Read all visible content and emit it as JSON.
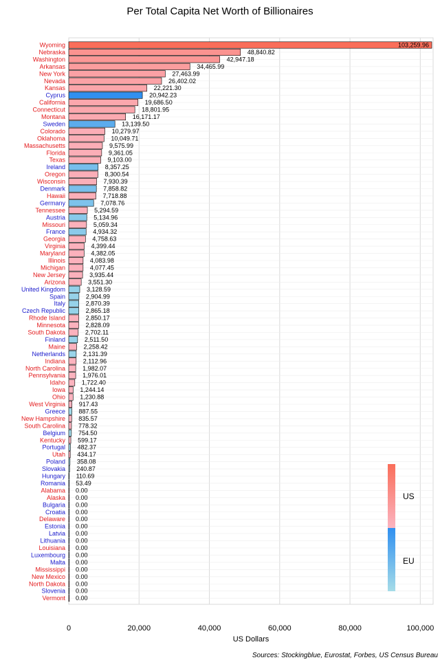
{
  "chart_data": {
    "type": "bar",
    "orientation": "horizontal",
    "title": "Per Total Capita Net Worth of Billionaires",
    "xlabel": "US Dollars",
    "source": "Sources: Stockingblue, Eurostat, Forbes, US Census Bureau",
    "xlim": [
      0,
      103259.96
    ],
    "xticks": [
      0,
      20000,
      40000,
      60000,
      80000,
      100000
    ],
    "xtick_labels": [
      "0",
      "20,000",
      "40,000",
      "60,000",
      "80,000",
      "100,000"
    ],
    "grid": true,
    "legend": {
      "placement": "right",
      "entries": [
        {
          "label": "US",
          "color_start": "#fa6e5a",
          "color_end": "#fbb4c0"
        },
        {
          "label": "EU",
          "color_start": "#3090f0",
          "color_end": "#a6dce8"
        }
      ]
    },
    "colors": {
      "us_max": "#fa6e5a",
      "us_min": "#fbb4c0",
      "eu_max": "#3090f0",
      "eu_min": "#a6dce8",
      "us_label": "#e31a1c",
      "eu_label": "#1a1acc"
    },
    "bars": [
      {
        "name": "Wyoming",
        "region": "US",
        "value": 103259.96,
        "label": "103,259.96"
      },
      {
        "name": "Nebraska",
        "region": "US",
        "value": 48840.82,
        "label": "48,840.82"
      },
      {
        "name": "Washington",
        "region": "US",
        "value": 42947.18,
        "label": "42,947.18"
      },
      {
        "name": "Arkansas",
        "region": "US",
        "value": 34465.99,
        "label": "34,465.99"
      },
      {
        "name": "New York",
        "region": "US",
        "value": 27463.99,
        "label": "27,463.99"
      },
      {
        "name": "Nevada",
        "region": "US",
        "value": 26402.02,
        "label": "26,402.02"
      },
      {
        "name": "Kansas",
        "region": "US",
        "value": 22221.3,
        "label": "22,221.30"
      },
      {
        "name": "Cyprus",
        "region": "EU",
        "value": 20942.23,
        "label": "20,942.23"
      },
      {
        "name": "California",
        "region": "US",
        "value": 19686.5,
        "label": "19,686.50"
      },
      {
        "name": "Connecticut",
        "region": "US",
        "value": 18801.95,
        "label": "18,801.95"
      },
      {
        "name": "Montana",
        "region": "US",
        "value": 16171.17,
        "label": "16,171.17"
      },
      {
        "name": "Sweden",
        "region": "EU",
        "value": 13139.5,
        "label": "13,139.50"
      },
      {
        "name": "Colorado",
        "region": "US",
        "value": 10279.97,
        "label": "10,279.97"
      },
      {
        "name": "Oklahoma",
        "region": "US",
        "value": 10049.71,
        "label": "10,049.71"
      },
      {
        "name": "Massachusetts",
        "region": "US",
        "value": 9575.99,
        "label": "9,575.99"
      },
      {
        "name": "Florida",
        "region": "US",
        "value": 9361.05,
        "label": "9,361.05"
      },
      {
        "name": "Texas",
        "region": "US",
        "value": 9103.0,
        "label": "9,103.00"
      },
      {
        "name": "Ireland",
        "region": "EU",
        "value": 8357.25,
        "label": "8,357.25"
      },
      {
        "name": "Oregon",
        "region": "US",
        "value": 8300.54,
        "label": "8,300.54"
      },
      {
        "name": "Wisconsin",
        "region": "US",
        "value": 7930.39,
        "label": "7,930.39"
      },
      {
        "name": "Denmark",
        "region": "EU",
        "value": 7858.82,
        "label": "7,858.82"
      },
      {
        "name": "Hawaii",
        "region": "US",
        "value": 7718.88,
        "label": "7,718.88"
      },
      {
        "name": "Germany",
        "region": "EU",
        "value": 7078.76,
        "label": "7,078.76"
      },
      {
        "name": "Tennessee",
        "region": "US",
        "value": 5294.59,
        "label": "5,294.59"
      },
      {
        "name": "Austria",
        "region": "EU",
        "value": 5134.96,
        "label": "5,134.96"
      },
      {
        "name": "Missouri",
        "region": "US",
        "value": 5059.34,
        "label": "5,059.34"
      },
      {
        "name": "France",
        "region": "EU",
        "value": 4934.32,
        "label": "4,934.32"
      },
      {
        "name": "Georgia",
        "region": "US",
        "value": 4758.63,
        "label": "4,758.63"
      },
      {
        "name": "Virginia",
        "region": "US",
        "value": 4399.44,
        "label": "4,399.44"
      },
      {
        "name": "Maryland",
        "region": "US",
        "value": 4382.05,
        "label": "4,382.05"
      },
      {
        "name": "Illinois",
        "region": "US",
        "value": 4083.98,
        "label": "4,083.98"
      },
      {
        "name": "Michigan",
        "region": "US",
        "value": 4077.45,
        "label": "4,077.45"
      },
      {
        "name": "New Jersey",
        "region": "US",
        "value": 3935.44,
        "label": "3,935.44"
      },
      {
        "name": "Arizona",
        "region": "US",
        "value": 3551.3,
        "label": "3,551.30"
      },
      {
        "name": "United Kingdom",
        "region": "EU",
        "value": 3128.59,
        "label": "3,128.59"
      },
      {
        "name": "Spain",
        "region": "EU",
        "value": 2904.99,
        "label": "2,904.99"
      },
      {
        "name": "Italy",
        "region": "EU",
        "value": 2870.39,
        "label": "2,870.39"
      },
      {
        "name": "Czech Republic",
        "region": "EU",
        "value": 2865.18,
        "label": "2,865.18"
      },
      {
        "name": "Rhode Island",
        "region": "US",
        "value": 2850.17,
        "label": "2,850.17"
      },
      {
        "name": "Minnesota",
        "region": "US",
        "value": 2828.09,
        "label": "2,828.09"
      },
      {
        "name": "South Dakota",
        "region": "US",
        "value": 2702.11,
        "label": "2,702.11"
      },
      {
        "name": "Finland",
        "region": "EU",
        "value": 2511.5,
        "label": "2,511.50"
      },
      {
        "name": "Maine",
        "region": "US",
        "value": 2258.42,
        "label": "2,258.42"
      },
      {
        "name": "Netherlands",
        "region": "EU",
        "value": 2131.39,
        "label": "2,131.39"
      },
      {
        "name": "Indiana",
        "region": "US",
        "value": 2112.96,
        "label": "2,112.96"
      },
      {
        "name": "North Carolina",
        "region": "US",
        "value": 1982.07,
        "label": "1,982.07"
      },
      {
        "name": "Pennsylvania",
        "region": "US",
        "value": 1976.01,
        "label": "1,976.01"
      },
      {
        "name": "Idaho",
        "region": "US",
        "value": 1722.4,
        "label": "1,722.40"
      },
      {
        "name": "Iowa",
        "region": "US",
        "value": 1244.14,
        "label": "1,244.14"
      },
      {
        "name": "Ohio",
        "region": "US",
        "value": 1230.88,
        "label": "1,230.88"
      },
      {
        "name": "West Virginia",
        "region": "US",
        "value": 917.43,
        "label": "917.43"
      },
      {
        "name": "Greece",
        "region": "EU",
        "value": 887.55,
        "label": "887.55"
      },
      {
        "name": "New Hampshire",
        "region": "US",
        "value": 835.57,
        "label": "835.57"
      },
      {
        "name": "South Carolina",
        "region": "US",
        "value": 778.32,
        "label": "778.32"
      },
      {
        "name": "Belgium",
        "region": "EU",
        "value": 754.5,
        "label": "754.50"
      },
      {
        "name": "Kentucky",
        "region": "US",
        "value": 599.17,
        "label": "599.17"
      },
      {
        "name": "Portugal",
        "region": "EU",
        "value": 482.37,
        "label": "482.37"
      },
      {
        "name": "Utah",
        "region": "US",
        "value": 434.17,
        "label": "434.17"
      },
      {
        "name": "Poland",
        "region": "EU",
        "value": 358.08,
        "label": "358.08"
      },
      {
        "name": "Slovakia",
        "region": "EU",
        "value": 240.87,
        "label": "240.87"
      },
      {
        "name": "Hungary",
        "region": "EU",
        "value": 110.69,
        "label": "110.69"
      },
      {
        "name": "Romania",
        "region": "EU",
        "value": 53.49,
        "label": "53.49"
      },
      {
        "name": "Alabama",
        "region": "US",
        "value": 0,
        "label": "0.00"
      },
      {
        "name": "Alaska",
        "region": "US",
        "value": 0,
        "label": "0.00"
      },
      {
        "name": "Bulgaria",
        "region": "EU",
        "value": 0,
        "label": "0.00"
      },
      {
        "name": "Croatia",
        "region": "EU",
        "value": 0,
        "label": "0.00"
      },
      {
        "name": "Delaware",
        "region": "US",
        "value": 0,
        "label": "0.00"
      },
      {
        "name": "Estonia",
        "region": "EU",
        "value": 0,
        "label": "0.00"
      },
      {
        "name": "Latvia",
        "region": "EU",
        "value": 0,
        "label": "0.00"
      },
      {
        "name": "Lithuania",
        "region": "EU",
        "value": 0,
        "label": "0.00"
      },
      {
        "name": "Louisiana",
        "region": "US",
        "value": 0,
        "label": "0.00"
      },
      {
        "name": "Luxembourg",
        "region": "EU",
        "value": 0,
        "label": "0.00"
      },
      {
        "name": "Malta",
        "region": "EU",
        "value": 0,
        "label": "0.00"
      },
      {
        "name": "Mississippi",
        "region": "US",
        "value": 0,
        "label": "0.00"
      },
      {
        "name": "New Mexico",
        "region": "US",
        "value": 0,
        "label": "0.00"
      },
      {
        "name": "North Dakota",
        "region": "US",
        "value": 0,
        "label": "0.00"
      },
      {
        "name": "Slovenia",
        "region": "EU",
        "value": 0,
        "label": "0.00"
      },
      {
        "name": "Vermont",
        "region": "US",
        "value": 0,
        "label": "0.00"
      }
    ]
  }
}
